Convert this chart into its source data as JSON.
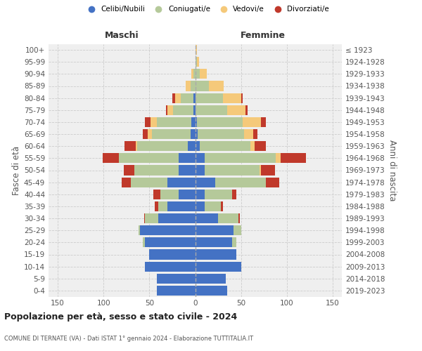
{
  "age_groups": [
    "0-4",
    "5-9",
    "10-14",
    "15-19",
    "20-24",
    "25-29",
    "30-34",
    "35-39",
    "40-44",
    "45-49",
    "50-54",
    "55-59",
    "60-64",
    "65-69",
    "70-74",
    "75-79",
    "80-84",
    "85-89",
    "90-94",
    "95-99",
    "100+"
  ],
  "birth_years": [
    "2019-2023",
    "2014-2018",
    "2009-2013",
    "2004-2008",
    "1999-2003",
    "1994-1998",
    "1989-1993",
    "1984-1988",
    "1979-1983",
    "1974-1978",
    "1969-1973",
    "1964-1968",
    "1959-1963",
    "1954-1958",
    "1949-1953",
    "1944-1948",
    "1939-1943",
    "1934-1938",
    "1929-1933",
    "1924-1928",
    "≤ 1923"
  ],
  "colors": {
    "celibi": "#4472C4",
    "coniugati": "#b5c99a",
    "vedovi": "#f5c97a",
    "divorziati": "#c0392b"
  },
  "maschi": {
    "celibi": [
      42,
      42,
      55,
      50,
      55,
      60,
      40,
      30,
      18,
      30,
      18,
      18,
      8,
      5,
      4,
      2,
      2,
      0,
      0,
      0,
      0
    ],
    "coniugati": [
      0,
      0,
      0,
      0,
      2,
      2,
      15,
      10,
      20,
      40,
      48,
      65,
      55,
      42,
      38,
      22,
      14,
      5,
      2,
      0,
      0
    ],
    "vedovi": [
      0,
      0,
      0,
      0,
      0,
      0,
      0,
      0,
      0,
      0,
      0,
      0,
      2,
      5,
      7,
      6,
      6,
      5,
      2,
      0,
      0
    ],
    "divorziati": [
      0,
      0,
      0,
      0,
      0,
      0,
      1,
      4,
      8,
      10,
      12,
      18,
      12,
      5,
      6,
      2,
      3,
      0,
      0,
      0,
      0
    ]
  },
  "femmine": {
    "celibi": [
      35,
      33,
      50,
      45,
      40,
      42,
      25,
      10,
      10,
      22,
      10,
      10,
      5,
      3,
      2,
      0,
      0,
      0,
      0,
      0,
      0
    ],
    "coniugati": [
      0,
      0,
      0,
      0,
      5,
      8,
      22,
      18,
      30,
      55,
      60,
      78,
      55,
      50,
      50,
      35,
      30,
      15,
      5,
      2,
      0
    ],
    "vedovi": [
      0,
      0,
      0,
      0,
      0,
      0,
      0,
      0,
      0,
      0,
      2,
      5,
      5,
      10,
      20,
      20,
      20,
      16,
      8,
      2,
      2
    ],
    "divorziati": [
      0,
      0,
      0,
      0,
      0,
      0,
      2,
      2,
      5,
      15,
      15,
      28,
      12,
      5,
      5,
      2,
      2,
      0,
      0,
      0,
      0
    ]
  },
  "xlim": 160,
  "title": "Popolazione per età, sesso e stato civile - 2024",
  "subtitle": "COMUNE DI TERNATE (VA) - Dati ISTAT 1° gennaio 2024 - Elaborazione TUTTITALIA.IT",
  "xlabel_left": "Maschi",
  "xlabel_right": "Femmine",
  "ylabel_left": "Fasce di età",
  "ylabel_right": "Anni di nascita",
  "legend_labels": [
    "Celibi/Nubili",
    "Coniugati/e",
    "Vedovi/e",
    "Divorziati/e"
  ],
  "bar_height": 0.82,
  "bg_color": "#efefef",
  "grid_color": "#cccccc",
  "text_color": "#555555"
}
